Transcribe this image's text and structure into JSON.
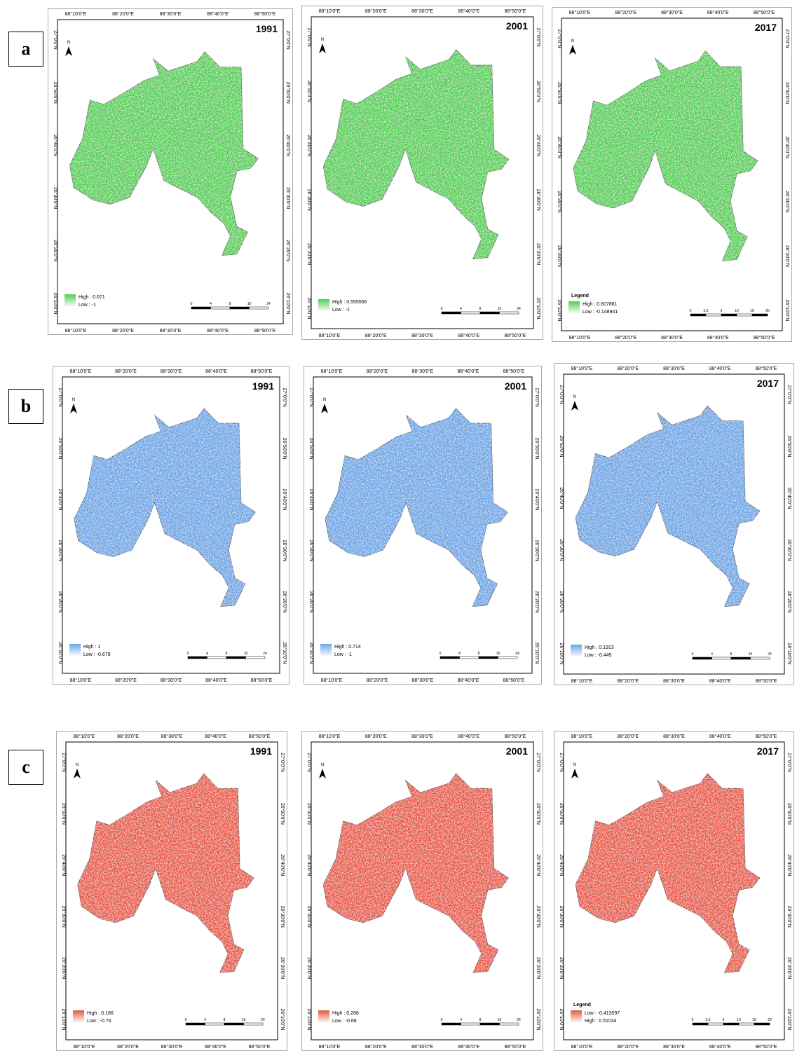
{
  "graticule": {
    "lon_labels": [
      "88°10'0\"E",
      "88°20'0\"E",
      "88°30'0\"E",
      "88°40'0\"E",
      "88°50'0\"E"
    ],
    "lat_labels": [
      "27°0'0\"N",
      "26°50'0\"N",
      "26°40'0\"N",
      "26°30'0\"N",
      "26°20'0\"N",
      "26°10'0\"N"
    ]
  },
  "rows": [
    {
      "label": "a",
      "color": "#4fcf4f",
      "maps": [
        {
          "year": "1991",
          "legend": [
            "High : 0.671",
            "Low : -1"
          ],
          "scale": [
            "0",
            "4",
            "8",
            "16",
            "24"
          ]
        },
        {
          "year": "2001",
          "legend": [
            "High : 0.555556",
            "Low : -1"
          ],
          "scale": [
            "0",
            "4",
            "8",
            "16",
            "24"
          ]
        },
        {
          "year": "2017",
          "legend_title": "Legend",
          "legend": [
            "High : 0.607881",
            "Low : -0.148941"
          ],
          "scale": [
            "0",
            "2.5",
            "5",
            "10",
            "15",
            "20"
          ]
        }
      ]
    },
    {
      "label": "b",
      "color": "#6aa6e6",
      "maps": [
        {
          "year": "1991",
          "legend": [
            "High : 1",
            "Low : -0.679"
          ],
          "scale": [
            "0",
            "4",
            "8",
            "16",
            "24"
          ]
        },
        {
          "year": "2001",
          "legend": [
            "High : 0.714",
            "Low : -1"
          ],
          "scale": [
            "0",
            "4",
            "8",
            "16",
            "24"
          ]
        },
        {
          "year": "2017",
          "legend": [
            "High : 0.1913",
            "Low : -0.449"
          ],
          "scale": [
            "0",
            "4",
            "8",
            "16",
            "24"
          ]
        }
      ]
    },
    {
      "label": "c",
      "color": "#e8553f",
      "maps": [
        {
          "year": "1991",
          "legend": [
            "High : 0.186",
            "Low : -0.76"
          ],
          "scale": [
            "0",
            "4",
            "8",
            "16",
            "24"
          ]
        },
        {
          "year": "2001",
          "legend": [
            "High : 0.288",
            "Low : -0.66"
          ],
          "scale": [
            "0",
            "4",
            "8",
            "16",
            "24"
          ]
        },
        {
          "year": "2017",
          "legend_title": "Legend",
          "legend": [
            "Low : -0.413597",
            "High : 0.51034"
          ],
          "scale": [
            "0",
            "2.5",
            "5",
            "10",
            "15",
            "20"
          ]
        }
      ]
    }
  ]
}
